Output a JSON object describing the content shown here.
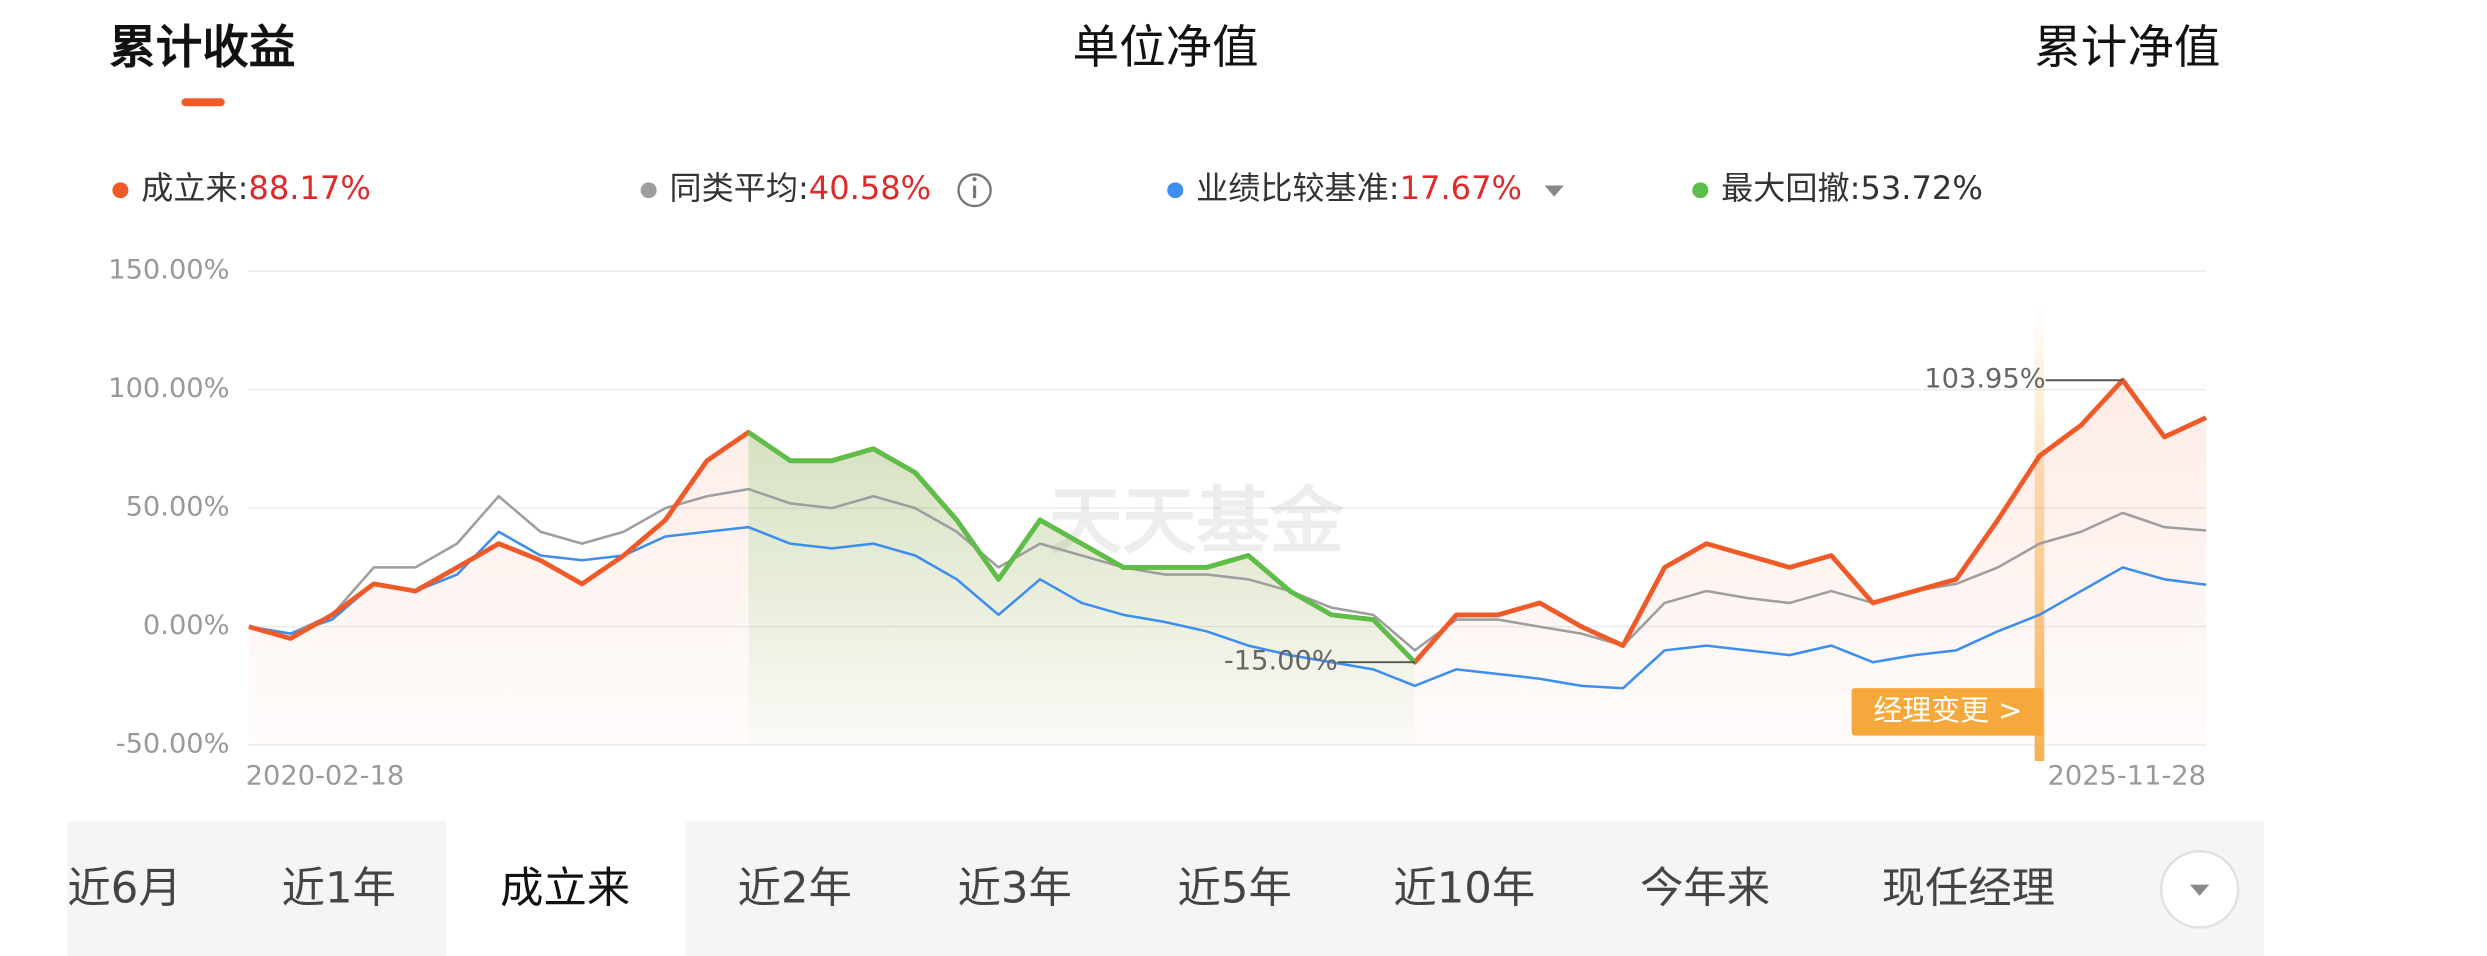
{
  "view_tabs": [
    "累计收益",
    "单位净值",
    "累计净值"
  ],
  "selected_view_index": 0,
  "period_tabs": [
    "近6月",
    "近1年",
    "成立来",
    "近2年",
    "近3年",
    "近5年",
    "近10年",
    "今年来",
    "现任经理"
  ],
  "selected_period_index": 2,
  "chart_data": {
    "type": "line",
    "watermark": "天天基金",
    "legend_separator": ":",
    "categories": [
      "2020-02-18",
      null,
      null,
      null,
      null,
      null,
      null,
      null,
      null,
      null,
      null,
      null,
      null,
      null,
      null,
      null,
      null,
      null,
      null,
      null,
      null,
      null,
      null,
      null,
      null,
      null,
      null,
      null,
      null,
      null,
      null,
      null,
      null,
      null,
      null,
      null,
      null,
      null,
      null,
      null,
      null,
      null,
      null,
      null,
      null,
      null,
      null,
      "2025-11-28"
    ],
    "ylim": [
      -50,
      150
    ],
    "yticks": [
      {
        "value": -50,
        "label": "-50.00%"
      },
      {
        "value": 0,
        "label": "0.00%"
      },
      {
        "value": 50,
        "label": "50.00%"
      },
      {
        "value": 100,
        "label": "100.00%"
      },
      {
        "value": 150,
        "label": "150.00%"
      }
    ],
    "grid": true,
    "series": [
      {
        "name": "同类平均",
        "color": "#9e9e9e",
        "summary": "40.58%",
        "values": [
          0,
          -3,
          5,
          25,
          25,
          35,
          55,
          40,
          35,
          40,
          50,
          55,
          58,
          52,
          50,
          55,
          50,
          40,
          25,
          35,
          30,
          25,
          22,
          22,
          20,
          15,
          8,
          5,
          -10,
          3,
          3,
          0,
          -3,
          -8,
          10,
          15,
          12,
          10,
          15,
          10,
          15,
          18,
          25,
          35,
          40,
          48,
          42,
          40.58
        ]
      },
      {
        "name": "业绩比较基准",
        "color": "#3d8ef0",
        "summary": "17.67%",
        "values": [
          0,
          -3,
          3,
          18,
          15,
          22,
          40,
          30,
          28,
          30,
          38,
          40,
          42,
          35,
          33,
          35,
          30,
          20,
          5,
          20,
          10,
          5,
          2,
          -2,
          -8,
          -12,
          -15,
          -18,
          -25,
          -18,
          -20,
          -22,
          -25,
          -26,
          -10,
          -8,
          -10,
          -12,
          -8,
          -15,
          -12,
          -10,
          -2,
          5,
          15,
          25,
          20,
          17.67
        ]
      },
      {
        "name": "成立来",
        "color": "#f05a28",
        "summary": "88.17%",
        "values": [
          0,
          -5,
          5,
          18,
          15,
          25,
          35,
          28,
          18,
          30,
          45,
          70,
          82,
          70,
          70,
          75,
          65,
          45,
          20,
          45,
          35,
          25,
          25,
          25,
          30,
          15,
          5,
          3,
          -15,
          5,
          5,
          10,
          0,
          -8,
          25,
          35,
          30,
          25,
          30,
          10,
          15,
          20,
          45,
          72,
          85,
          103.95,
          80,
          88.17
        ]
      },
      {
        "name": "最大回撤",
        "color": "#5cbf4a",
        "summary": "53.72%",
        "values": [
          null,
          null,
          null,
          null,
          null,
          null,
          null,
          null,
          null,
          null,
          null,
          null,
          82,
          70,
          70,
          75,
          65,
          45,
          20,
          45,
          35,
          25,
          25,
          25,
          30,
          15,
          5,
          3,
          -15,
          null,
          null,
          null,
          null,
          null,
          null,
          null,
          null,
          null,
          null,
          null,
          null,
          null,
          null,
          null,
          null,
          null,
          null,
          null
        ]
      }
    ],
    "annotations": [
      {
        "value": 103.95,
        "label": "103.95%"
      },
      {
        "value": -15,
        "label": "-15.00%"
      }
    ],
    "manager_change": "经理变更 >"
  }
}
